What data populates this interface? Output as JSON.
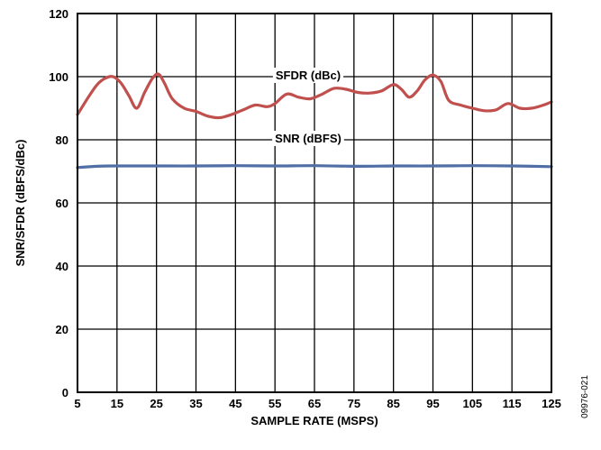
{
  "chart_data": {
    "type": "line",
    "title": "",
    "xlabel": "SAMPLE RATE (MSPS)",
    "ylabel": "SNR/SFDR (dBFS/dBc)",
    "xlim": [
      5,
      125
    ],
    "ylim": [
      0,
      120
    ],
    "x_ticks": [
      5,
      15,
      25,
      35,
      45,
      55,
      65,
      75,
      85,
      95,
      105,
      115,
      125
    ],
    "y_ticks": [
      0,
      20,
      40,
      60,
      80,
      100,
      120
    ],
    "grid": true,
    "series": [
      {
        "name": "SFDR (dBc)",
        "color": "#c0504d",
        "x": [
          5,
          8,
          10,
          12,
          14,
          16,
          18,
          20,
          22,
          24,
          25.5,
          27,
          29,
          32,
          35,
          38,
          41,
          44,
          47,
          50,
          53,
          55,
          58,
          61,
          64,
          67,
          70,
          73,
          76,
          79,
          82,
          85,
          87,
          89,
          91,
          93,
          95,
          97,
          99,
          102,
          105,
          108,
          111,
          114,
          117,
          120,
          123,
          125
        ],
        "values": [
          88,
          94,
          97.5,
          99.5,
          100,
          98,
          94,
          90,
          95,
          99.5,
          100.8,
          98,
          93,
          90,
          89,
          87.5,
          87,
          88,
          89.5,
          91,
          90.5,
          91.5,
          94.5,
          93.5,
          93,
          94.5,
          96.3,
          96,
          95,
          94.8,
          95.5,
          97.5,
          96,
          93.5,
          95.5,
          99,
          100.5,
          98.5,
          92.5,
          91,
          90,
          89.2,
          89.5,
          91.5,
          90,
          90,
          91,
          92
        ]
      },
      {
        "name": "SNR (dBFS)",
        "color": "#4f6fa6",
        "x": [
          5,
          10,
          15,
          25,
          35,
          45,
          55,
          65,
          75,
          85,
          95,
          105,
          115,
          125
        ],
        "values": [
          71.2,
          71.6,
          71.7,
          71.7,
          71.7,
          71.8,
          71.7,
          71.8,
          71.6,
          71.7,
          71.7,
          71.8,
          71.7,
          71.5
        ]
      }
    ]
  },
  "figure_id": "09976-021"
}
